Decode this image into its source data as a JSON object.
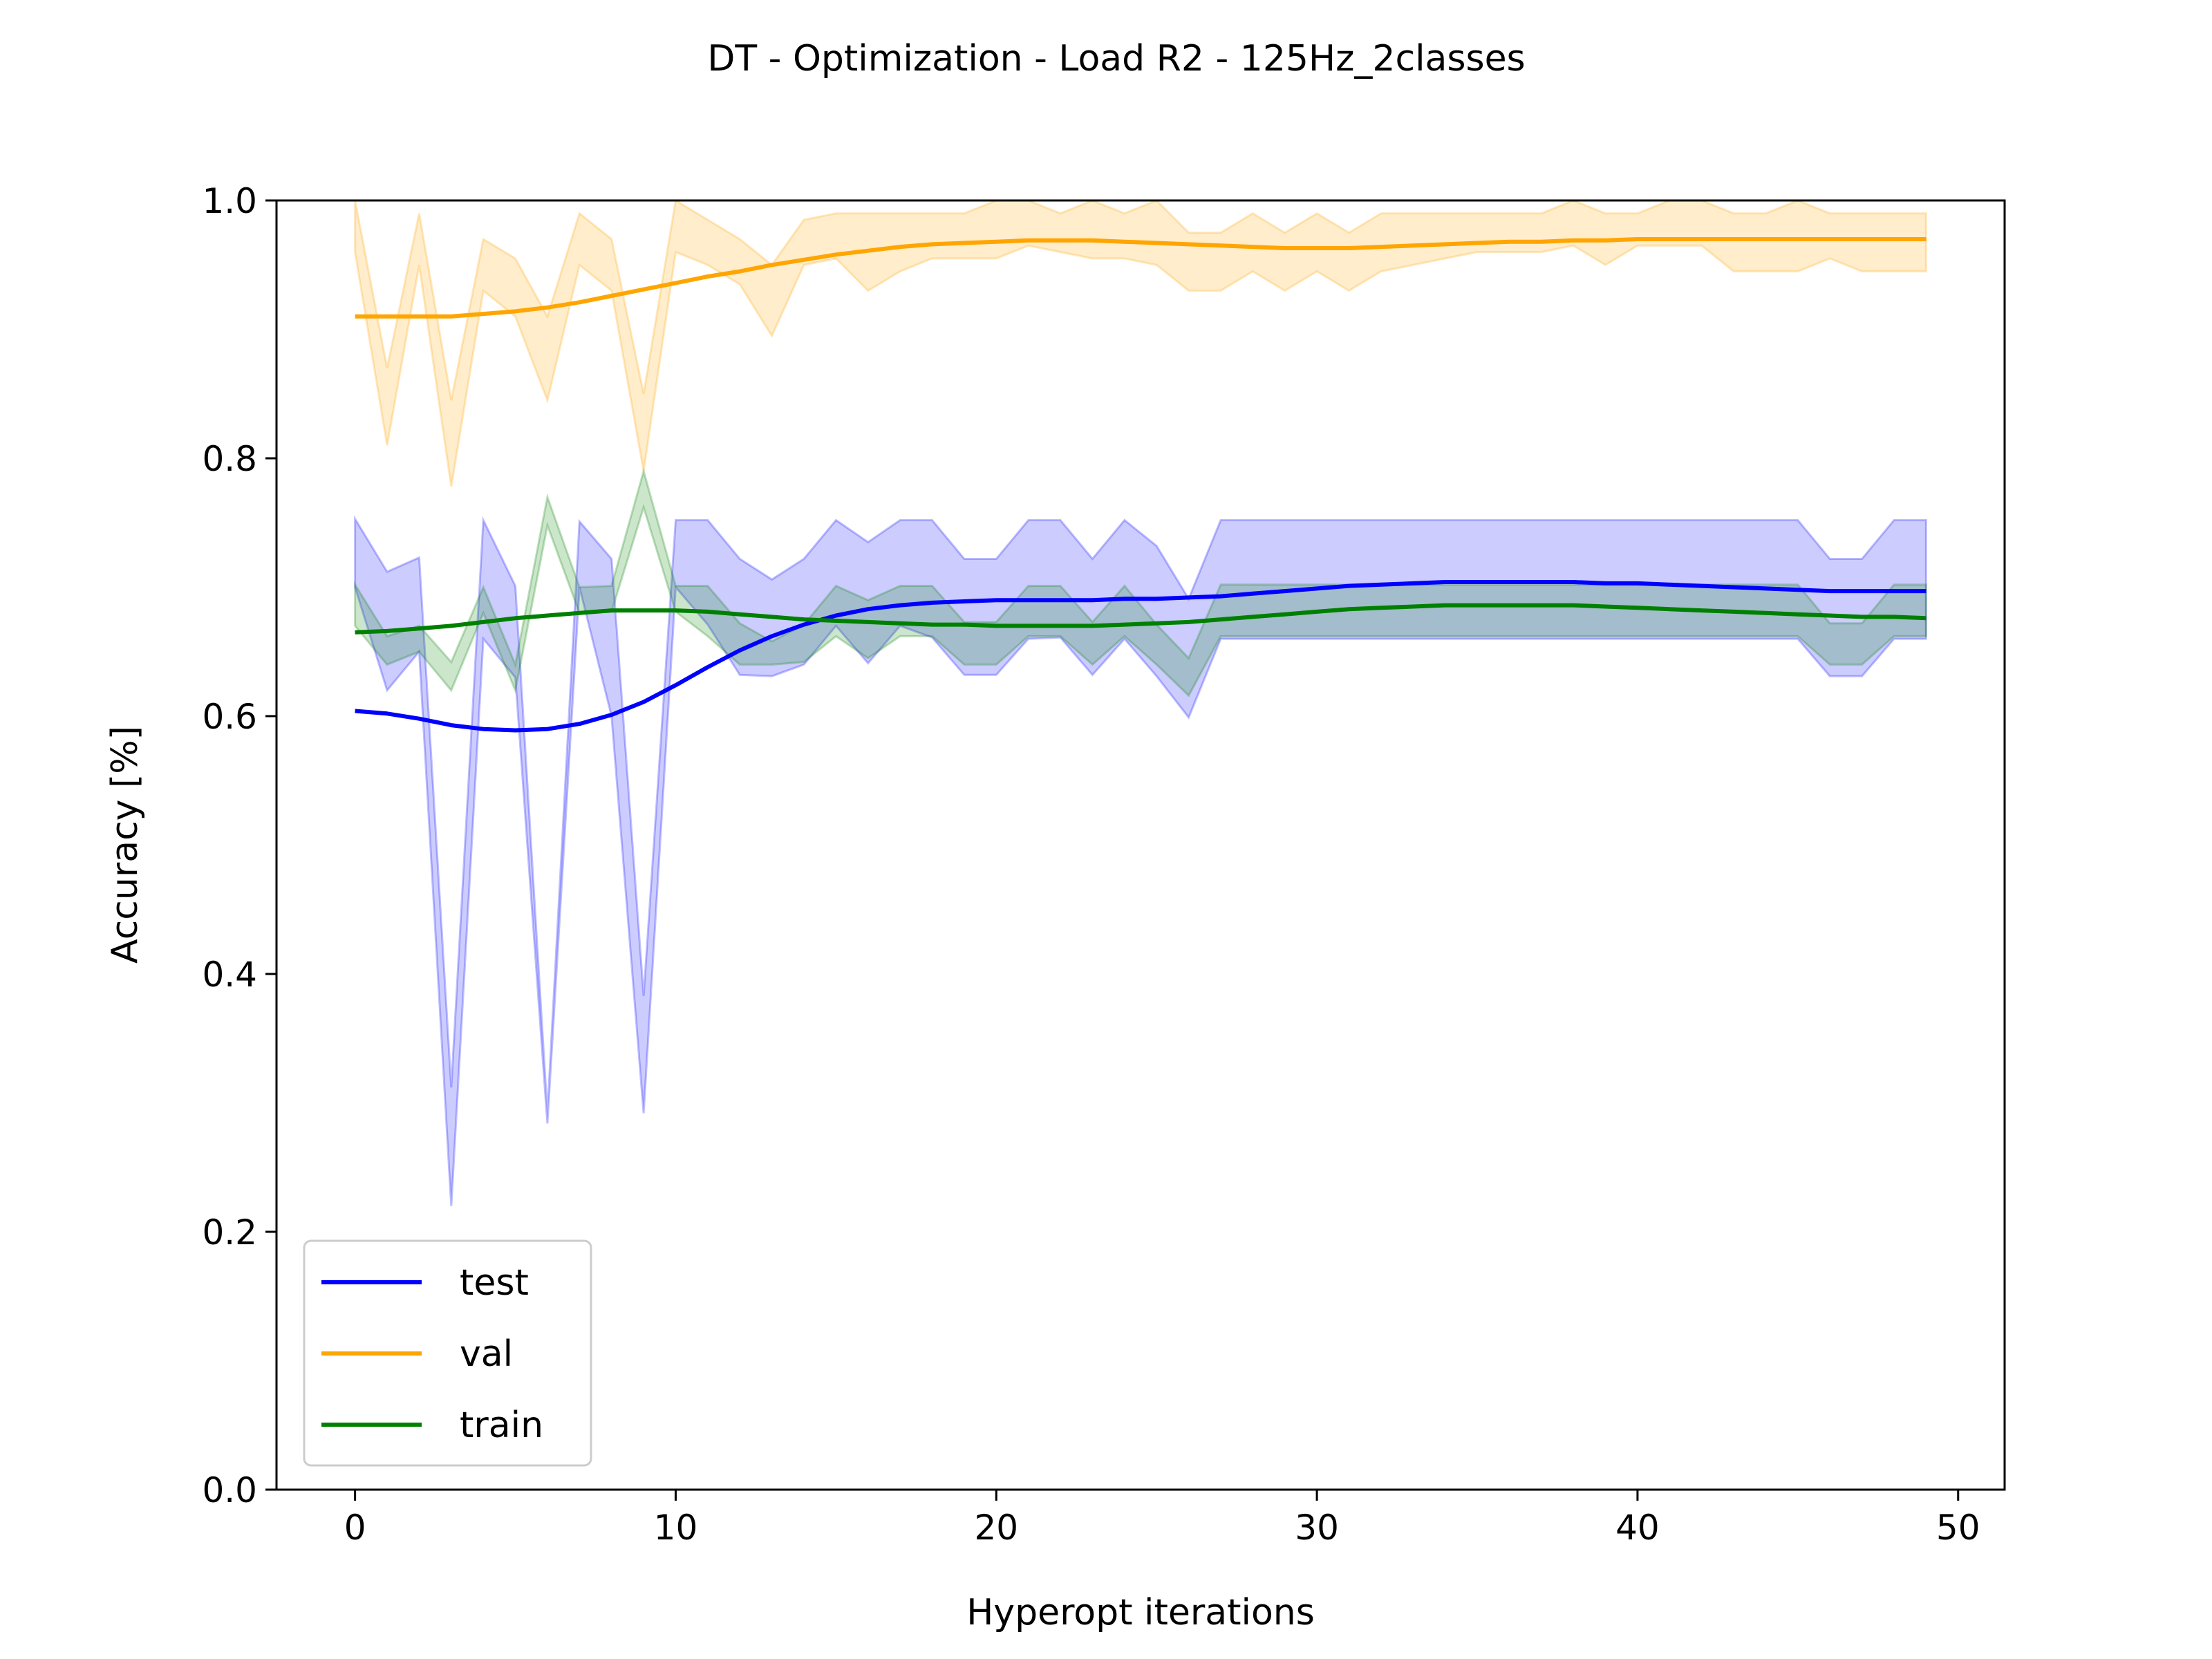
{
  "chart_data": {
    "type": "line",
    "title": "DT - Optimization - Load R2 - 125Hz_2classes",
    "xlabel": "Hyperopt iterations",
    "ylabel": "Accuracy [%]",
    "xlim": [
      -2.45,
      51.45
    ],
    "ylim": [
      0.0,
      1.0
    ],
    "xticks": [
      0,
      10,
      20,
      30,
      40,
      50
    ],
    "yticks": [
      0.0,
      0.2,
      0.4,
      0.6,
      0.8,
      1.0
    ],
    "xtick_labels": [
      "0",
      "10",
      "20",
      "30",
      "40",
      "50"
    ],
    "ytick_labels": [
      "0.0",
      "0.2",
      "0.4",
      "0.6",
      "0.8",
      "1.0"
    ],
    "grid": false,
    "legend_position": "lower-left",
    "x": [
      0,
      1,
      2,
      3,
      4,
      5,
      6,
      7,
      8,
      9,
      10,
      11,
      12,
      13,
      14,
      15,
      16,
      17,
      18,
      19,
      20,
      21,
      22,
      23,
      24,
      25,
      26,
      27,
      28,
      29,
      30,
      31,
      32,
      33,
      34,
      35,
      36,
      37,
      38,
      39,
      40,
      41,
      42,
      43,
      44,
      45,
      46,
      47,
      48,
      49
    ],
    "series": [
      {
        "name": "test",
        "color": "#0000ff",
        "band_color": "#0000ff",
        "values": [
          0.604,
          0.602,
          0.598,
          0.593,
          0.59,
          0.589,
          0.59,
          0.594,
          0.601,
          0.611,
          0.624,
          0.638,
          0.651,
          0.662,
          0.671,
          0.678,
          0.683,
          0.686,
          0.688,
          0.689,
          0.69,
          0.69,
          0.69,
          0.69,
          0.691,
          0.691,
          0.692,
          0.693,
          0.695,
          0.697,
          0.699,
          0.701,
          0.702,
          0.703,
          0.704,
          0.704,
          0.704,
          0.704,
          0.704,
          0.703,
          0.703,
          0.702,
          0.701,
          0.7,
          0.699,
          0.698,
          0.697,
          0.697,
          0.697,
          0.697
        ],
        "upper": [
          0.753,
          0.712,
          0.723,
          0.312,
          0.752,
          0.701,
          0.292,
          0.751,
          0.722,
          0.383,
          0.752,
          0.752,
          0.722,
          0.706,
          0.722,
          0.752,
          0.735,
          0.752,
          0.752,
          0.722,
          0.722,
          0.752,
          0.752,
          0.722,
          0.752,
          0.732,
          0.691,
          0.752,
          0.752,
          0.752,
          0.752,
          0.752,
          0.752,
          0.752,
          0.752,
          0.752,
          0.752,
          0.752,
          0.752,
          0.752,
          0.752,
          0.752,
          0.752,
          0.752,
          0.752,
          0.752,
          0.722,
          0.722,
          0.752,
          0.752
        ],
        "lower": [
          0.7,
          0.62,
          0.65,
          0.22,
          0.66,
          0.63,
          0.284,
          0.7,
          0.6,
          0.292,
          0.7,
          0.671,
          0.632,
          0.631,
          0.64,
          0.67,
          0.641,
          0.67,
          0.661,
          0.632,
          0.632,
          0.66,
          0.661,
          0.632,
          0.66,
          0.631,
          0.599,
          0.66,
          0.66,
          0.66,
          0.66,
          0.66,
          0.66,
          0.66,
          0.66,
          0.66,
          0.66,
          0.66,
          0.66,
          0.66,
          0.66,
          0.66,
          0.66,
          0.66,
          0.66,
          0.66,
          0.631,
          0.631,
          0.66,
          0.66
        ]
      },
      {
        "name": "val",
        "color": "#ffa500",
        "band_color": "#ffa500",
        "values": [
          0.91,
          0.91,
          0.91,
          0.91,
          0.912,
          0.914,
          0.917,
          0.921,
          0.926,
          0.931,
          0.936,
          0.941,
          0.945,
          0.95,
          0.954,
          0.958,
          0.961,
          0.964,
          0.966,
          0.967,
          0.968,
          0.969,
          0.969,
          0.969,
          0.968,
          0.967,
          0.966,
          0.965,
          0.964,
          0.963,
          0.963,
          0.963,
          0.964,
          0.965,
          0.966,
          0.967,
          0.968,
          0.968,
          0.969,
          0.969,
          0.97,
          0.97,
          0.97,
          0.97,
          0.97,
          0.97,
          0.97,
          0.97,
          0.97,
          0.97
        ],
        "upper": [
          1.0,
          0.87,
          0.99,
          0.845,
          0.97,
          0.955,
          0.91,
          0.99,
          0.97,
          0.85,
          1.0,
          0.985,
          0.97,
          0.95,
          0.985,
          0.99,
          0.99,
          0.99,
          0.99,
          0.99,
          1.0,
          1.0,
          0.99,
          1.0,
          0.99,
          1.0,
          0.975,
          0.975,
          0.99,
          0.975,
          0.99,
          0.975,
          0.99,
          0.99,
          0.99,
          0.99,
          0.99,
          0.99,
          1.0,
          0.99,
          0.99,
          1.0,
          1.0,
          0.99,
          0.99,
          1.0,
          0.99,
          0.99,
          0.99,
          0.99
        ],
        "lower": [
          0.96,
          0.81,
          0.95,
          0.778,
          0.93,
          0.91,
          0.845,
          0.95,
          0.93,
          0.79,
          0.96,
          0.95,
          0.935,
          0.895,
          0.95,
          0.955,
          0.93,
          0.945,
          0.955,
          0.955,
          0.955,
          0.965,
          0.96,
          0.955,
          0.955,
          0.95,
          0.93,
          0.93,
          0.945,
          0.93,
          0.945,
          0.93,
          0.945,
          0.95,
          0.955,
          0.96,
          0.96,
          0.96,
          0.965,
          0.95,
          0.965,
          0.965,
          0.965,
          0.945,
          0.945,
          0.945,
          0.955,
          0.945,
          0.945,
          0.945
        ]
      },
      {
        "name": "train",
        "color": "#008000",
        "band_color": "#008000",
        "values": [
          0.665,
          0.666,
          0.668,
          0.67,
          0.673,
          0.676,
          0.678,
          0.68,
          0.682,
          0.682,
          0.682,
          0.681,
          0.679,
          0.677,
          0.675,
          0.674,
          0.673,
          0.672,
          0.671,
          0.671,
          0.67,
          0.67,
          0.67,
          0.67,
          0.671,
          0.672,
          0.673,
          0.675,
          0.677,
          0.679,
          0.681,
          0.683,
          0.684,
          0.685,
          0.686,
          0.686,
          0.686,
          0.686,
          0.686,
          0.685,
          0.684,
          0.683,
          0.682,
          0.681,
          0.68,
          0.679,
          0.678,
          0.677,
          0.677,
          0.676
        ],
        "upper": [
          0.702,
          0.662,
          0.67,
          0.642,
          0.7,
          0.64,
          0.77,
          0.7,
          0.701,
          0.79,
          0.701,
          0.701,
          0.672,
          0.658,
          0.671,
          0.701,
          0.69,
          0.701,
          0.701,
          0.673,
          0.673,
          0.701,
          0.701,
          0.673,
          0.701,
          0.671,
          0.645,
          0.702,
          0.702,
          0.702,
          0.702,
          0.702,
          0.702,
          0.702,
          0.702,
          0.702,
          0.702,
          0.702,
          0.702,
          0.702,
          0.702,
          0.702,
          0.702,
          0.702,
          0.702,
          0.702,
          0.672,
          0.672,
          0.702,
          0.702
        ],
        "lower": [
          0.67,
          0.64,
          0.65,
          0.62,
          0.68,
          0.62,
          0.748,
          0.68,
          0.681,
          0.762,
          0.681,
          0.662,
          0.64,
          0.64,
          0.642,
          0.662,
          0.645,
          0.662,
          0.662,
          0.64,
          0.64,
          0.662,
          0.662,
          0.64,
          0.662,
          0.64,
          0.616,
          0.662,
          0.662,
          0.662,
          0.662,
          0.662,
          0.662,
          0.662,
          0.662,
          0.662,
          0.662,
          0.662,
          0.662,
          0.662,
          0.662,
          0.662,
          0.662,
          0.662,
          0.662,
          0.662,
          0.64,
          0.64,
          0.662,
          0.662
        ]
      }
    ]
  }
}
